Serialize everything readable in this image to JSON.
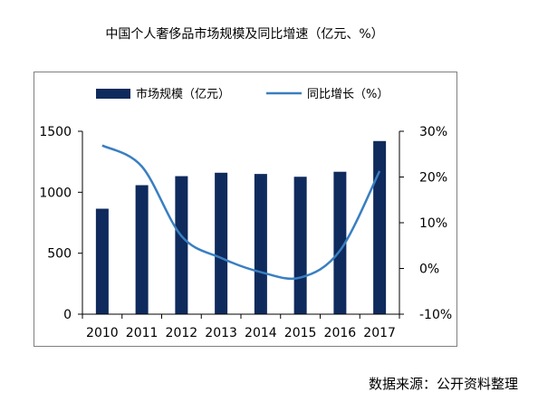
{
  "title": "中国个人奢侈品市场规模及同比增速（亿元、%）",
  "source": "数据来源：公开资料整理",
  "chart_data": {
    "type": "bar",
    "categories": [
      "2010",
      "2011",
      "2012",
      "2013",
      "2014",
      "2015",
      "2016",
      "2017"
    ],
    "series": [
      {
        "name": "市场规模（亿元）",
        "type": "bar",
        "axis": "left",
        "color": "#0f2a5c",
        "values": [
          865,
          1058,
          1132,
          1160,
          1150,
          1127,
          1168,
          1420
        ]
      },
      {
        "name": "同比增长（%）",
        "type": "line",
        "axis": "right",
        "color": "#3a7fc1",
        "values": [
          26.9,
          22.3,
          7.1,
          2.3,
          -0.8,
          -2.0,
          3.9,
          21.3
        ]
      }
    ],
    "ylim_left": [
      0,
      1500
    ],
    "yticks_left": [
      "0",
      "500",
      "1000",
      "1500"
    ],
    "ylim_right": [
      -10,
      30
    ],
    "yticks_right": [
      "-10%",
      "0%",
      "10%",
      "20%",
      "30%"
    ],
    "grid": false,
    "legend": "top"
  }
}
